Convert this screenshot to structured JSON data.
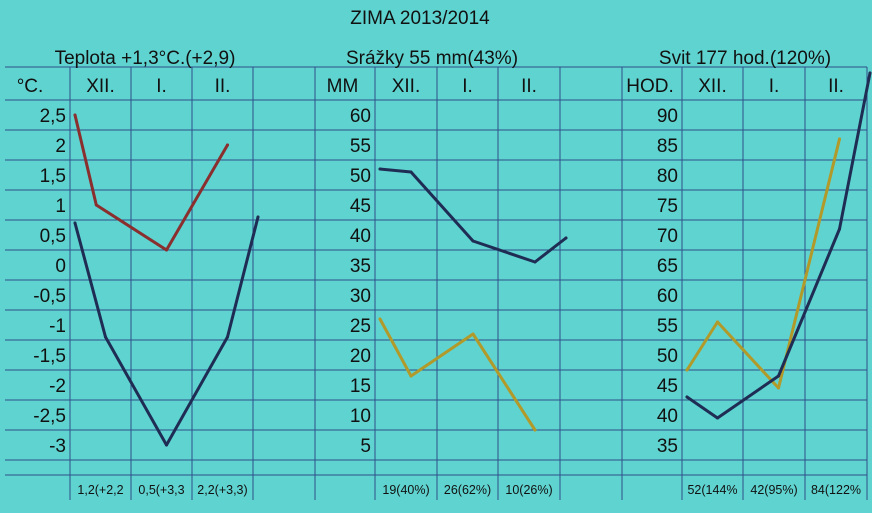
{
  "title": "ZIMA 2013/2014",
  "chart_data": [
    {
      "type": "line",
      "title": "Teplota +1,3°C.(+2,9)",
      "ylabel": "°C.",
      "categories": [
        "XII.",
        "I.",
        "II."
      ],
      "ylim": [
        -3.3,
        2.9
      ],
      "yticks": [
        "2,5",
        "2",
        "1,5",
        "1",
        "0,5",
        "0",
        "-0,5",
        "-1",
        "-1,5",
        "-2",
        "-2,5",
        "-3"
      ],
      "ytick_values": [
        2.5,
        2,
        1.5,
        1,
        0.5,
        0,
        -0.5,
        -1,
        -1.5,
        -2,
        -2.5,
        -3
      ],
      "footer": [
        "1,2(+2,2",
        "0,5(+3,3",
        "2,2(+3,3)"
      ],
      "series": [
        {
          "color": "#8a2e2e",
          "x": [
            0,
            0.35,
            1.5,
            2.5
          ],
          "values": [
            2.5,
            1.0,
            0.25,
            2.0
          ]
        },
        {
          "color": "#1f2d55",
          "x": [
            0,
            0.5,
            1.5,
            2.5,
            3.0
          ],
          "values": [
            0.7,
            -1.2,
            -3.0,
            -1.2,
            0.8
          ]
        }
      ]
    },
    {
      "type": "line",
      "title": "Srážky 55 mm(43%)",
      "ylabel": "MM",
      "categories": [
        "XII.",
        "I.",
        "II."
      ],
      "ylim": [
        3,
        64
      ],
      "yticks": [
        "60",
        "55",
        "50",
        "45",
        "40",
        "35",
        "30",
        "25",
        "20",
        "15",
        "10",
        "5"
      ],
      "ytick_values": [
        60,
        55,
        50,
        45,
        40,
        35,
        30,
        25,
        20,
        15,
        10,
        5
      ],
      "footer": [
        "19(40%)",
        "26(62%)",
        "10(26%)"
      ],
      "series": [
        {
          "color": "#1f2d55",
          "x": [
            0,
            0.5,
            1.5,
            2.5,
            3.0
          ],
          "values": [
            51,
            50.5,
            39,
            35.5,
            39.5
          ]
        },
        {
          "color": "#b29a2a",
          "x": [
            0,
            0.5,
            1.5,
            2.5
          ],
          "values": [
            26,
            16.5,
            23.5,
            7.5
          ]
        }
      ]
    },
    {
      "type": "line",
      "title": "Svit 177 hod.(120%)",
      "ylabel": "HOD.",
      "categories": [
        "XII.",
        "I.",
        "II."
      ],
      "ylim": [
        33,
        94
      ],
      "yticks": [
        "90",
        "85",
        "80",
        "75",
        "70",
        "65",
        "60",
        "55",
        "50",
        "45",
        "40",
        "35"
      ],
      "ytick_values": [
        90,
        85,
        80,
        75,
        70,
        65,
        60,
        55,
        50,
        45,
        40,
        35
      ],
      "footer": [
        "52(144%",
        "42(95%)",
        "84(122%"
      ],
      "series": [
        {
          "color": "#b29a2a",
          "x": [
            0,
            0.5,
            1.5,
            2.5
          ],
          "values": [
            47.5,
            55.5,
            44.5,
            86
          ]
        },
        {
          "color": "#1f2d55",
          "x": [
            0,
            0.5,
            1.5,
            2.5,
            3.0
          ],
          "values": [
            43,
            39.5,
            46.5,
            71,
            97
          ]
        }
      ]
    }
  ]
}
